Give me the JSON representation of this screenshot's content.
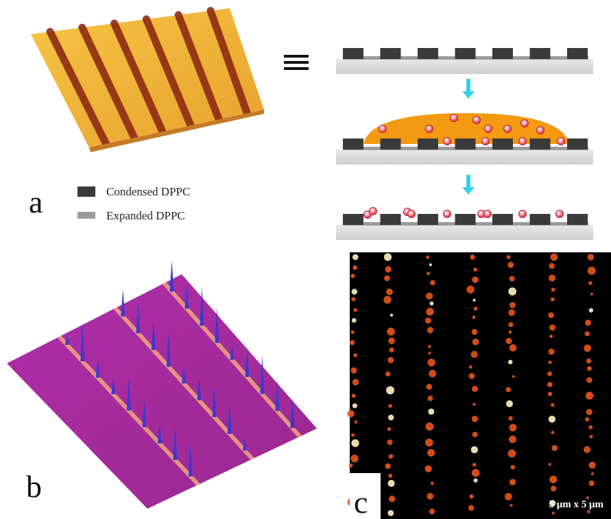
{
  "panels": [
    {
      "label": "a"
    },
    {
      "label": "b"
    },
    {
      "label": "c",
      "scale_bar": "5 μm x 5 μm"
    }
  ],
  "legend": [
    {
      "label": "Condensed DPPC"
    },
    {
      "label": "Expanded DPPC"
    }
  ]
}
